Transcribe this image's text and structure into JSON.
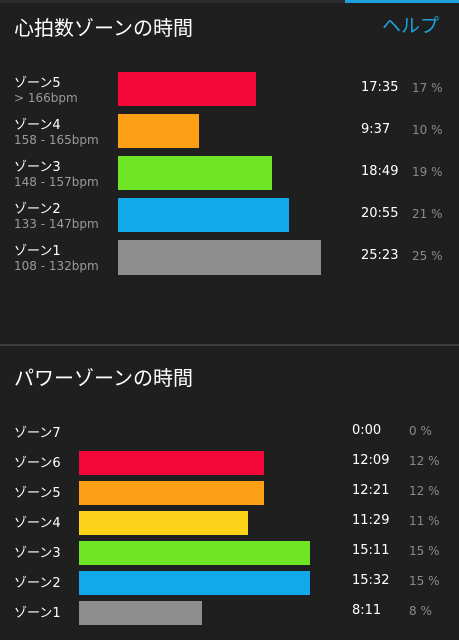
{
  "header": {
    "title": "心拍数ゾーンの時間",
    "help_label": "ヘルプ"
  },
  "heart_rate": {
    "zones": [
      {
        "name": "ゾーン5",
        "range": "> 166bpm",
        "time": "17:35",
        "percent": "17 %",
        "value": 17,
        "color": "#f5073a"
      },
      {
        "name": "ゾーン4",
        "range": "158 - 165bpm",
        "time": "9:37",
        "percent": "10 %",
        "value": 10,
        "color": "#fc9f14"
      },
      {
        "name": "ゾーン3",
        "range": "148 - 157bpm",
        "time": "18:49",
        "percent": "19 %",
        "value": 19,
        "color": "#6fe625"
      },
      {
        "name": "ゾーン2",
        "range": "133 - 147bpm",
        "time": "20:55",
        "percent": "21 %",
        "value": 21,
        "color": "#13a8ea"
      },
      {
        "name": "ゾーン1",
        "range": "108 - 132bpm",
        "time": "25:23",
        "percent": "25 %",
        "value": 25,
        "color": "#8e8e8e"
      }
    ]
  },
  "power": {
    "title": "パワーゾーンの時間",
    "zones": [
      {
        "name": "ゾーン7",
        "time": "0:00",
        "percent": "0 %",
        "value": 0,
        "color": "#8e8e8e"
      },
      {
        "name": "ゾーン6",
        "time": "12:09",
        "percent": "12 %",
        "value": 12,
        "color": "#f5073a"
      },
      {
        "name": "ゾーン5",
        "time": "12:21",
        "percent": "12 %",
        "value": 12,
        "color": "#fc9f14"
      },
      {
        "name": "ゾーン4",
        "time": "11:29",
        "percent": "11 %",
        "value": 11,
        "color": "#fdd31a"
      },
      {
        "name": "ゾーン3",
        "time": "15:11",
        "percent": "15 %",
        "value": 15,
        "color": "#6fe625"
      },
      {
        "name": "ゾーン2",
        "time": "15:32",
        "percent": "15 %",
        "value": 15,
        "color": "#13a8ea"
      },
      {
        "name": "ゾーン1",
        "time": "8:11",
        "percent": "8 %",
        "value": 8,
        "color": "#8e8e8e"
      }
    ]
  }
}
